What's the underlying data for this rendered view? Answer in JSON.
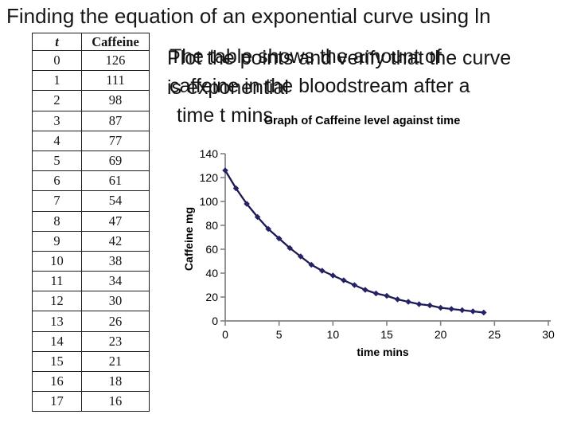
{
  "slide": {
    "title": "Finding the equation of an exponential curve using ln"
  },
  "table": {
    "headers": [
      "t",
      "Caffeine"
    ],
    "rows": [
      [
        0,
        126
      ],
      [
        1,
        111
      ],
      [
        2,
        98
      ],
      [
        3,
        87
      ],
      [
        4,
        77
      ],
      [
        5,
        69
      ],
      [
        6,
        61
      ],
      [
        7,
        54
      ],
      [
        8,
        47
      ],
      [
        9,
        42
      ],
      [
        10,
        38
      ],
      [
        11,
        34
      ],
      [
        12,
        30
      ],
      [
        13,
        26
      ],
      [
        14,
        23
      ],
      [
        15,
        21
      ],
      [
        16,
        18
      ],
      [
        17,
        16
      ]
    ]
  },
  "texts": {
    "block1": {
      "lines": [
        "The table shows the amount of",
        "caffeine in the bloodstream after a",
        "time t mins"
      ]
    },
    "block2": {
      "lines": [
        "Plot the points and verify that the curve",
        "is exponential"
      ]
    }
  },
  "chart_data": {
    "type": "line",
    "title": "Graph of Caffeine level against time",
    "xlabel": "time mins",
    "ylabel": "Caffeine mg",
    "x": [
      0,
      1,
      2,
      3,
      4,
      5,
      6,
      7,
      8,
      9,
      10,
      11,
      12,
      13,
      14,
      15,
      16,
      17,
      18,
      19,
      20,
      21,
      22,
      23,
      24
    ],
    "series": [
      {
        "name": "Caffeine",
        "values": [
          126,
          111,
          98,
          87,
          77,
          69,
          61,
          54,
          47,
          42,
          38,
          34,
          30,
          26,
          23,
          21,
          18,
          16,
          14,
          13,
          11,
          10,
          9,
          8,
          7
        ]
      }
    ],
    "xlim": [
      0,
      30
    ],
    "ylim": [
      0,
      140
    ],
    "xticks": [
      0,
      5,
      10,
      15,
      20,
      25,
      30
    ],
    "yticks": [
      0,
      20,
      40,
      60,
      80,
      100,
      120,
      140
    ],
    "grid": false,
    "legend": false,
    "marker": "diamond",
    "colors": {
      "line": "#1b1852",
      "marker": "#262268",
      "axis": "#828282",
      "tick_text": "#000000"
    }
  }
}
